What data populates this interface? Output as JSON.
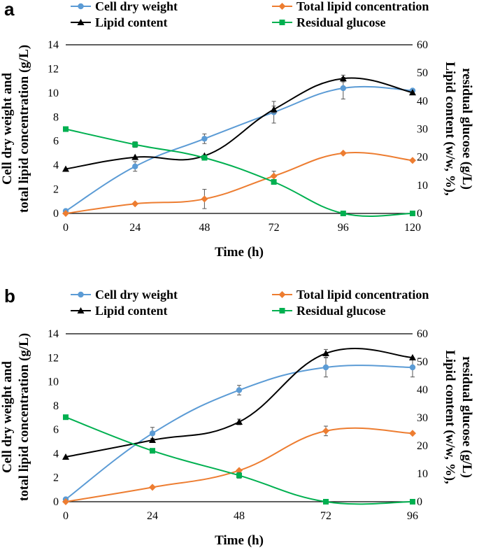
{
  "chart_data": [
    {
      "type": "line",
      "panel_label": "a",
      "categories": [
        "0",
        "24",
        "48",
        "72",
        "96",
        "120"
      ],
      "x": [
        0,
        24,
        48,
        72,
        96,
        120
      ],
      "xlabel": "Time (h)",
      "ylabel": [
        "Cell dry weight and",
        "total lipid concentration (g/L)"
      ],
      "y2label": [
        "Lipid content (w/w, %),",
        "residual glucose (g/L)"
      ],
      "ylim": [
        0,
        14
      ],
      "yticks": [
        "0",
        "2",
        "4",
        "6",
        "8",
        "10",
        "12",
        "14"
      ],
      "y2lim": [
        0,
        60
      ],
      "y2ticks": [
        "0",
        "10",
        "20",
        "30",
        "40",
        "50",
        "60"
      ],
      "series": [
        {
          "name": "Cell dry weight",
          "axis": "left",
          "color": "#5B9BD5",
          "marker": "circle",
          "values": [
            0.2,
            3.9,
            6.2,
            8.4,
            10.4,
            10.2
          ],
          "errors": [
            0,
            0.4,
            0.4,
            0.9,
            0.9,
            0
          ]
        },
        {
          "name": "Total lipid concentration",
          "axis": "left",
          "color": "#ED7D31",
          "marker": "diamond",
          "values": [
            0.0,
            0.8,
            1.2,
            3.1,
            5.0,
            4.4
          ],
          "errors": [
            0,
            0,
            0.8,
            0.4,
            0,
            0
          ]
        },
        {
          "name": "Lipid content",
          "axis": "right",
          "color": "#000000",
          "marker": "triangle",
          "values": [
            15.8,
            20.0,
            20.5,
            37.0,
            48.0,
            43.0
          ],
          "errors": [
            0,
            0,
            0,
            1.2,
            1.2,
            0
          ]
        },
        {
          "name": "Residual glucose",
          "axis": "right",
          "color": "#00B050",
          "marker": "square",
          "values": [
            30.0,
            24.5,
            19.8,
            11.2,
            0.0,
            0.0
          ],
          "errors": [
            0,
            1.0,
            0.6,
            0.8,
            0,
            0
          ]
        }
      ]
    },
    {
      "type": "line",
      "panel_label": "b",
      "categories": [
        "0",
        "24",
        "48",
        "72",
        "96"
      ],
      "x": [
        0,
        24,
        48,
        72,
        96
      ],
      "xlabel": "Time (h)",
      "ylabel": [
        "Cell dry weight and",
        "total lipid concentration (g/L)"
      ],
      "y2label": [
        "Lipid content (w/w, %),",
        "residual glucose (g/L)"
      ],
      "ylim": [
        0,
        14
      ],
      "yticks": [
        "0",
        "2",
        "4",
        "6",
        "8",
        "10",
        "12",
        "14"
      ],
      "y2lim": [
        0,
        60
      ],
      "y2ticks": [
        "0",
        "10",
        "20",
        "30",
        "40",
        "50",
        "60"
      ],
      "series": [
        {
          "name": "Cell dry weight",
          "axis": "left",
          "color": "#5B9BD5",
          "marker": "circle",
          "values": [
            0.2,
            5.7,
            9.3,
            11.2,
            11.2
          ],
          "errors": [
            0,
            0.5,
            0.4,
            0.8,
            0.8
          ]
        },
        {
          "name": "Total lipid concentration",
          "axis": "left",
          "color": "#ED7D31",
          "marker": "diamond",
          "values": [
            0.0,
            1.2,
            2.6,
            5.9,
            5.7
          ],
          "errors": [
            0,
            0,
            0,
            0.4,
            0
          ]
        },
        {
          "name": "Lipid content",
          "axis": "right",
          "color": "#000000",
          "marker": "triangle",
          "values": [
            16.0,
            22.0,
            28.5,
            53.0,
            51.5
          ],
          "errors": [
            0,
            0.6,
            1.0,
            1.4,
            0
          ]
        },
        {
          "name": "Residual glucose",
          "axis": "right",
          "color": "#00B050",
          "marker": "square",
          "values": [
            30.2,
            18.2,
            9.4,
            0.0,
            0.0
          ],
          "errors": [
            0,
            0.8,
            1.0,
            0,
            0
          ]
        }
      ]
    }
  ]
}
